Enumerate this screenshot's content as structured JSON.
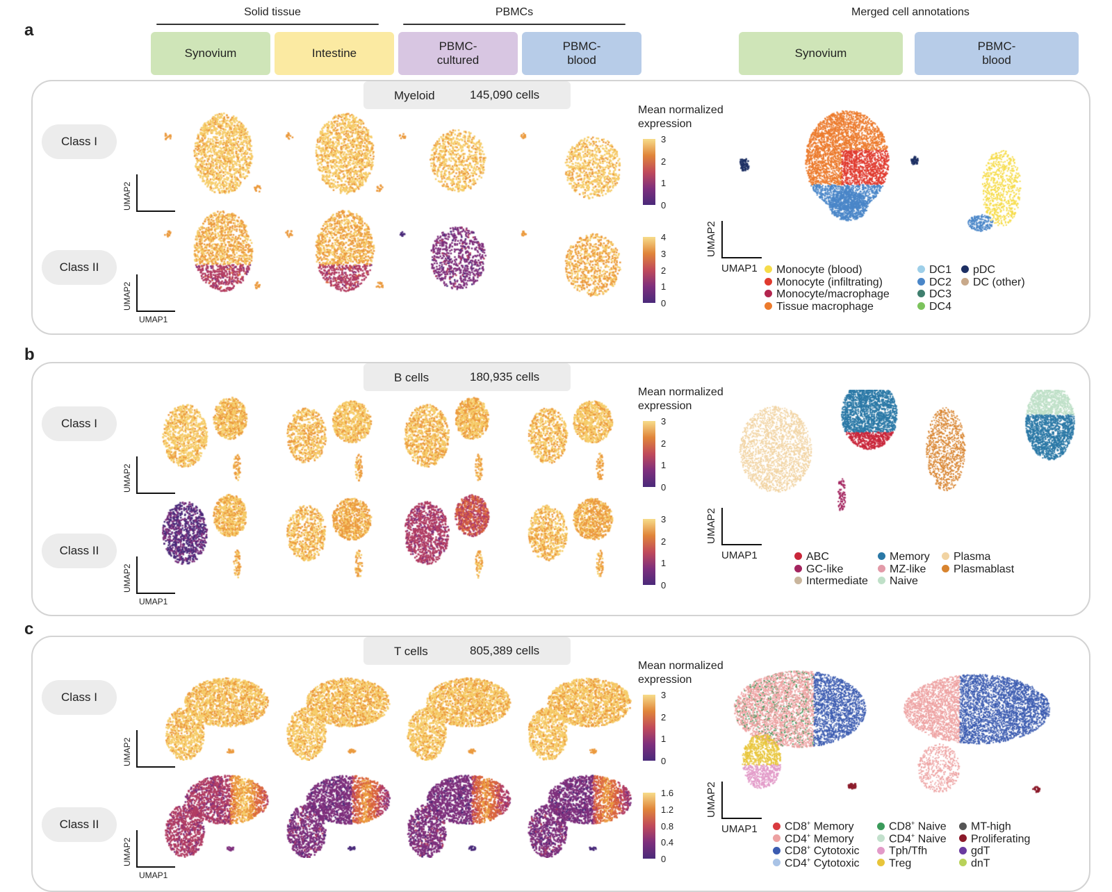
{
  "header": {
    "groups": [
      {
        "label": "Solid tissue"
      },
      {
        "label": "PBMCs"
      },
      {
        "label": "Merged cell annotations"
      }
    ],
    "tissues": [
      {
        "label": "Synovium",
        "color": "#cfe5b8"
      },
      {
        "label": "Intestine",
        "color": "#fbeaa2"
      },
      {
        "label": "PBMC-\ncultured",
        "color": "#d8c6e2"
      },
      {
        "label": "PBMC-\nblood",
        "color": "#b7cce8"
      }
    ],
    "merged": [
      {
        "label": "Synovium",
        "color": "#cfe5b8"
      },
      {
        "label": "PBMC-\nblood",
        "color": "#b7cce8"
      }
    ]
  },
  "common": {
    "class1": "Class I",
    "class2": "Class II",
    "umap1": "UMAP1",
    "umap2": "UMAP2",
    "cb_title_line1": "Mean normalized",
    "cb_title_line2": "expression"
  },
  "panels": [
    {
      "letter": "a",
      "name": "Myeloid",
      "count": "145,090 cells",
      "ticks_class1": [
        "3",
        "2",
        "1",
        "0"
      ],
      "ticks_class2": [
        "4",
        "3",
        "2",
        "1",
        "0"
      ],
      "legend": [
        {
          "label": "Monocyte (blood)",
          "color": "#f6dc4a"
        },
        {
          "label": "Monocyte (infiltrating)",
          "color": "#e03a2e"
        },
        {
          "label": "Monocyte/macrophage",
          "color": "#b2254e"
        },
        {
          "label": "Tissue macrophage",
          "color": "#ec7b2d"
        },
        {
          "label": "DC1",
          "color": "#9ecfe9"
        },
        {
          "label": "DC2",
          "color": "#4a86c8"
        },
        {
          "label": "DC3",
          "color": "#3f7f6e"
        },
        {
          "label": "DC4",
          "color": "#7cc35c"
        },
        {
          "label": "pDC",
          "color": "#1d2f63"
        },
        {
          "label": "DC (other)",
          "color": "#c8a98a"
        }
      ]
    },
    {
      "letter": "b",
      "name": "B cells",
      "count": "180,935 cells",
      "ticks_class1": [
        "3",
        "2",
        "1",
        "0"
      ],
      "ticks_class2": [
        "3",
        "2",
        "1",
        "0"
      ],
      "legend": [
        {
          "label": "ABC",
          "color": "#c9263a"
        },
        {
          "label": "GC-like",
          "color": "#a3245f"
        },
        {
          "label": "Intermediate",
          "color": "#c9b59c"
        },
        {
          "label": "Memory",
          "color": "#2a78a6"
        },
        {
          "label": "MZ-like",
          "color": "#e29aa8"
        },
        {
          "label": "Naive",
          "color": "#bfe0c8"
        },
        {
          "label": "Plasma",
          "color": "#f1d3a2"
        },
        {
          "label": "Plasmablast",
          "color": "#d8842f"
        }
      ]
    },
    {
      "letter": "c",
      "name": "T cells",
      "count": "805,389 cells",
      "ticks_class1": [
        "3",
        "2",
        "1",
        "0"
      ],
      "ticks_class2": [
        "1.6",
        "1.2",
        "0.8",
        "0.4",
        "0"
      ],
      "legend": [
        {
          "pre": "CD8",
          "sup": "+",
          "post": " Memory",
          "color": "#d93a3f"
        },
        {
          "pre": "CD4",
          "sup": "+",
          "post": " Memory",
          "color": "#eda1a1"
        },
        {
          "pre": "CD8",
          "sup": "+",
          "post": " Cytotoxic",
          "color": "#3b5bb0"
        },
        {
          "pre": "CD4",
          "sup": "+",
          "post": " Cytotoxic",
          "color": "#a9c3e6"
        },
        {
          "pre": "CD8",
          "sup": "+",
          "post": " Naive",
          "color": "#3a9a5a"
        },
        {
          "pre": "CD4",
          "sup": "+",
          "post": " Naive",
          "color": "#c2e0cc"
        },
        {
          "pre": "",
          "sup": "",
          "post": "Tph/Tfh",
          "color": "#e29ac8"
        },
        {
          "pre": "",
          "sup": "",
          "post": "Treg",
          "color": "#e8c53a"
        },
        {
          "pre": "",
          "sup": "",
          "post": "MT-high",
          "color": "#555555"
        },
        {
          "pre": "",
          "sup": "",
          "post": "Proliferating",
          "color": "#8b1a2a"
        },
        {
          "pre": "",
          "sup": "",
          "post": "gdT",
          "color": "#6a3aa0"
        },
        {
          "pre": "",
          "sup": "",
          "post": "dnT",
          "color": "#b8d25a"
        }
      ]
    }
  ]
}
